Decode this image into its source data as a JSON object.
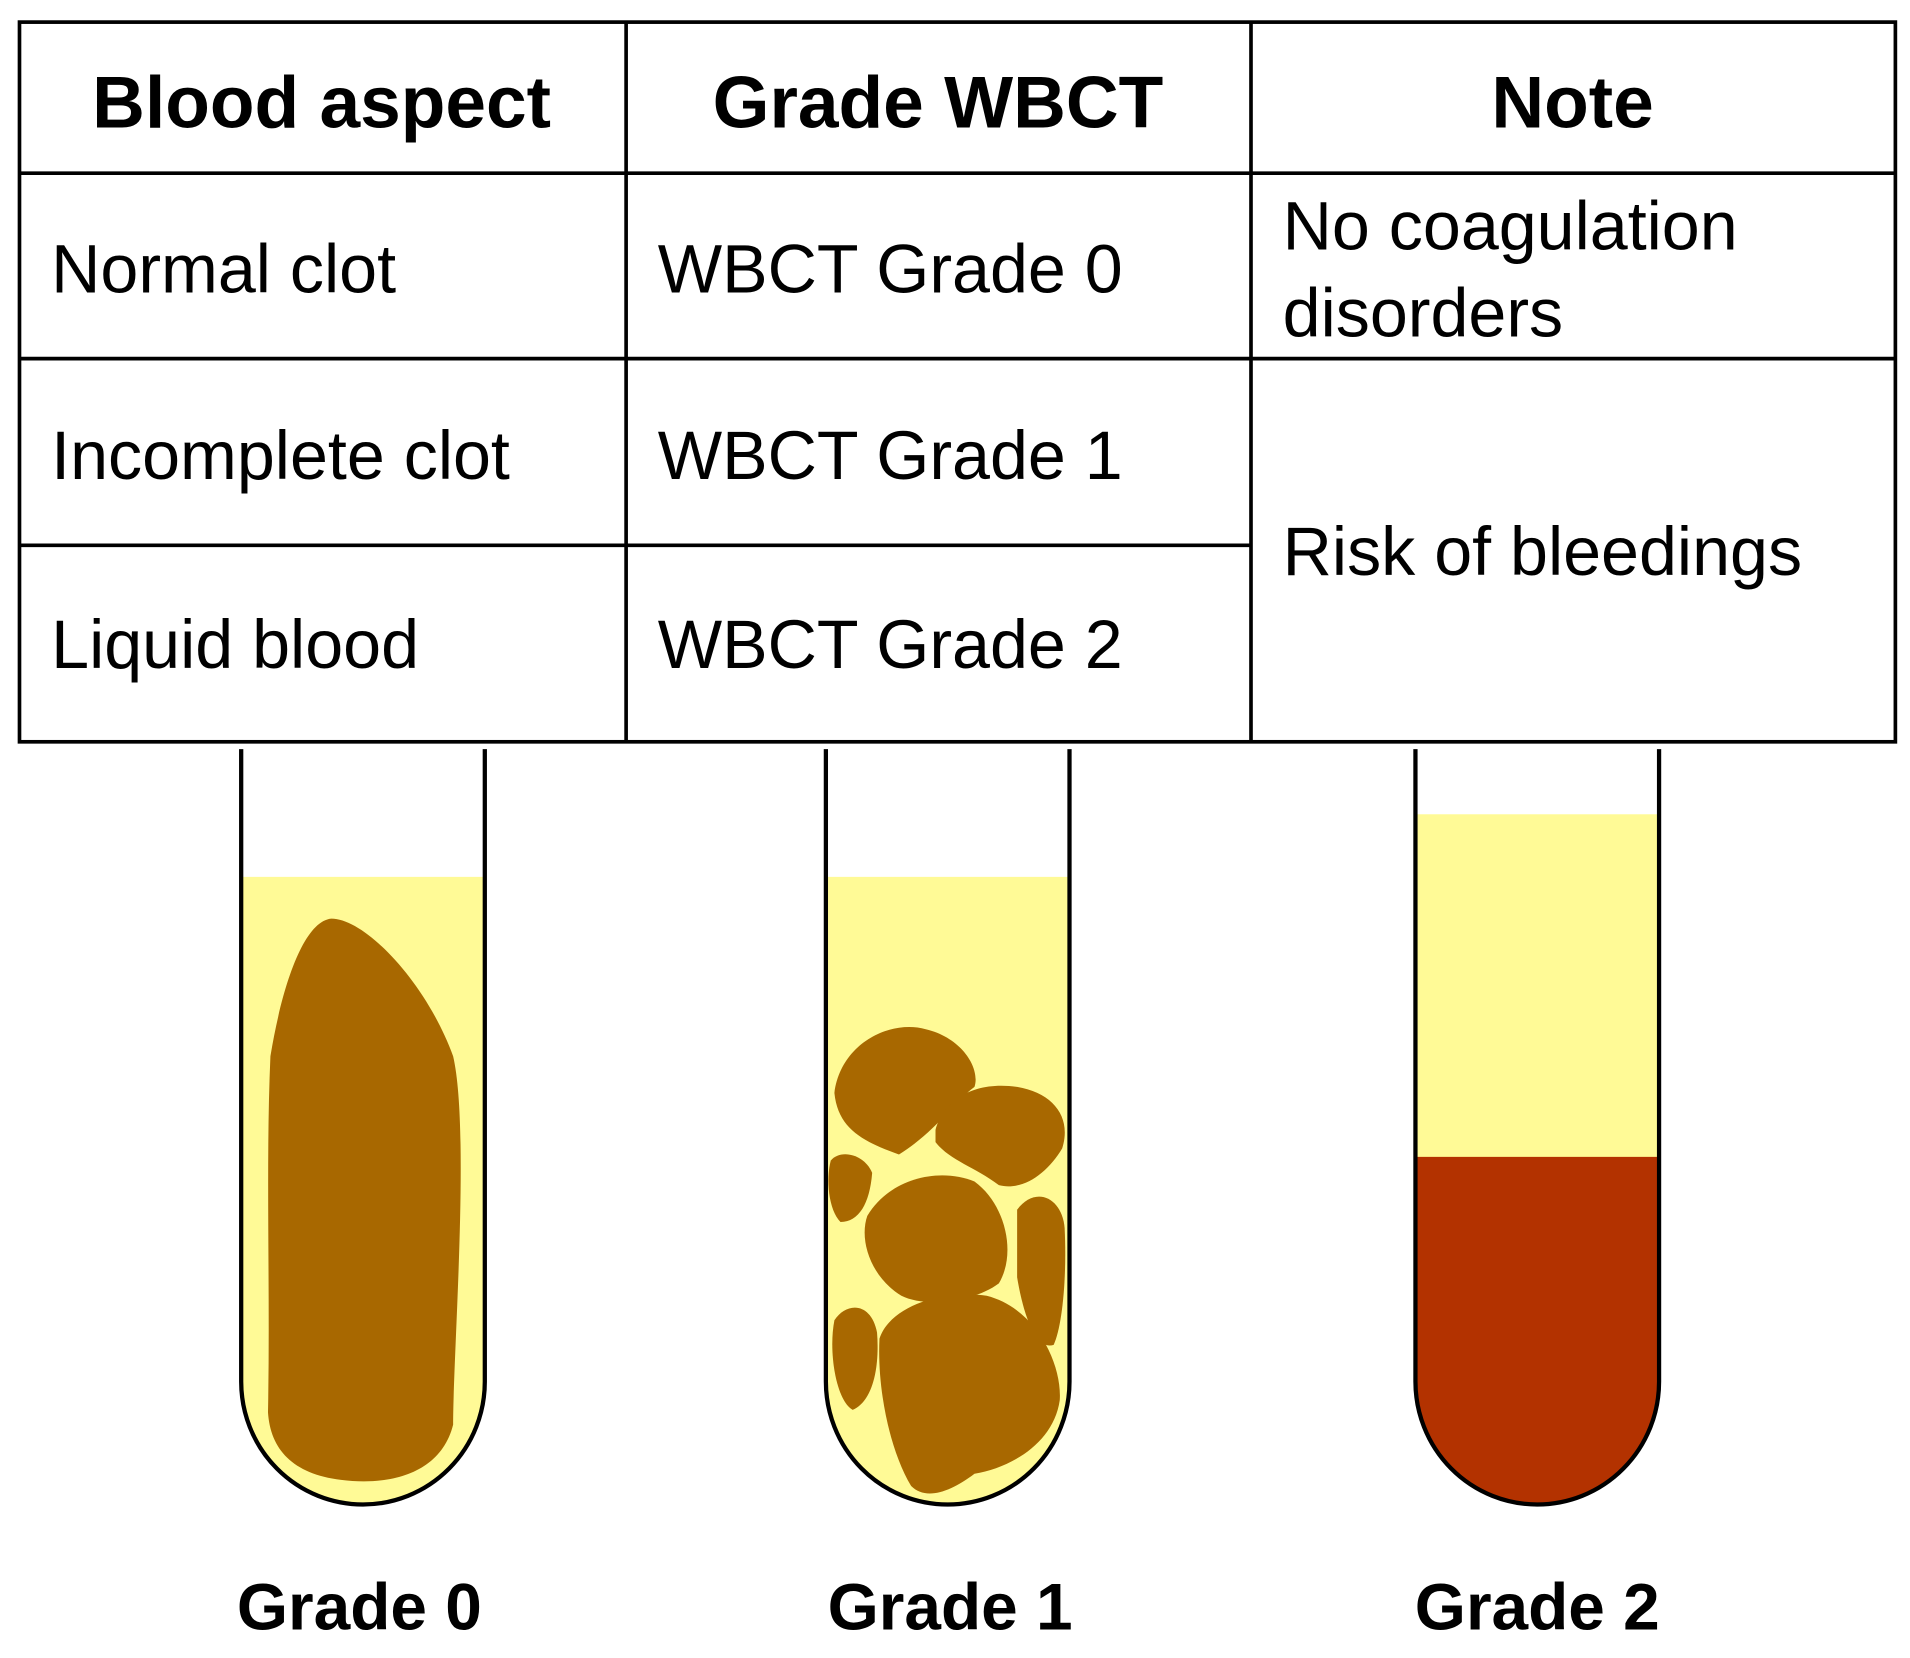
{
  "table": {
    "header": [
      "Blood aspect",
      "Grade WBCT",
      "Note"
    ],
    "rows": [
      [
        "Normal clot",
        "WBCT Grade 0"
      ],
      [
        "Incomplete clot",
        "WBCT Grade 1"
      ],
      [
        "Liquid blood",
        "WBCT Grade 2"
      ]
    ],
    "notes": [
      {
        "lines": [
          "No coagulation",
          "disorders"
        ]
      },
      {
        "lines": [
          "Risk of bleedings"
        ]
      }
    ]
  },
  "tubes": [
    {
      "label": "Grade 0"
    },
    {
      "label": "Grade 1"
    },
    {
      "label": "Grade 2"
    }
  ]
}
